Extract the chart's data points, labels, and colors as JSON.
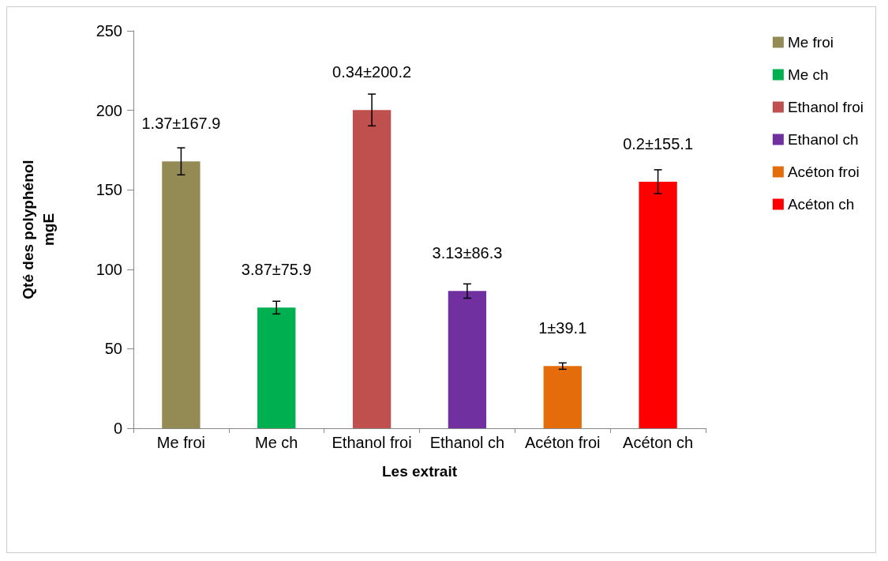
{
  "chart_data": {
    "type": "bar",
    "xlabel": "Les extrait",
    "ylabel": "Qté des polyphénol\nmgE",
    "categories": [
      "Me froi",
      "Me ch",
      "Ethanol froi",
      "Ethanol ch",
      "Acéton froi",
      "Acéton ch"
    ],
    "series": [
      {
        "name": "Me froi",
        "color": "#948a54",
        "values": [
          167.9,
          null,
          null,
          null,
          null,
          null
        ],
        "errors": [
          8.5,
          null,
          null,
          null,
          null,
          null
        ],
        "value_labels": [
          "1.37±167.9",
          null,
          null,
          null,
          null,
          null
        ]
      },
      {
        "name": "Me ch",
        "color": "#00b050",
        "values": [
          null,
          75.9,
          null,
          null,
          null,
          null
        ],
        "errors": [
          null,
          4,
          null,
          null,
          null,
          null
        ],
        "value_labels": [
          null,
          "3.87±75.9",
          null,
          null,
          null,
          null
        ]
      },
      {
        "name": "Ethanol froi",
        "color": "#c0504d",
        "values": [
          null,
          null,
          200.2,
          null,
          null,
          null
        ],
        "errors": [
          null,
          null,
          10,
          null,
          null,
          null
        ],
        "value_labels": [
          null,
          null,
          "0.34±200.2",
          null,
          null,
          null
        ]
      },
      {
        "name": "Ethanol ch",
        "color": "#7030a0",
        "values": [
          null,
          null,
          null,
          86.3,
          null,
          null
        ],
        "errors": [
          null,
          null,
          null,
          4.5,
          null,
          null
        ],
        "value_labels": [
          null,
          null,
          null,
          "3.13±86.3",
          null,
          null
        ]
      },
      {
        "name": "Acéton froi",
        "color": "#e46c0a",
        "values": [
          null,
          null,
          null,
          null,
          39.1,
          null
        ],
        "errors": [
          null,
          null,
          null,
          null,
          2,
          null
        ],
        "value_labels": [
          null,
          null,
          null,
          null,
          "1±39.1",
          null
        ]
      },
      {
        "name": "Acéton ch",
        "color": "#ff0000",
        "values": [
          null,
          null,
          null,
          null,
          null,
          155.1
        ],
        "errors": [
          null,
          null,
          null,
          null,
          null,
          7.5
        ],
        "value_labels": [
          null,
          null,
          null,
          null,
          null,
          "0.2±155.1"
        ]
      }
    ],
    "ylim": [
      0,
      250
    ],
    "yticks": [
      0,
      50,
      100,
      150,
      200,
      250
    ],
    "grid": false,
    "legend": "right"
  }
}
